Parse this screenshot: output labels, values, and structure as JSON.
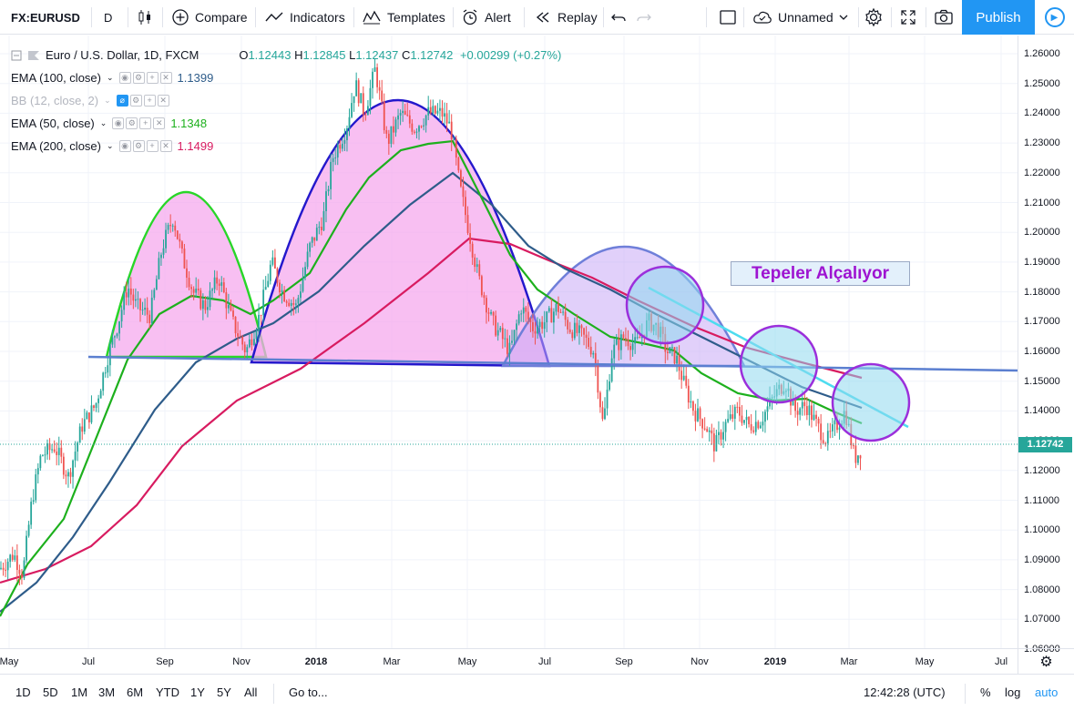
{
  "toolbar": {
    "symbol": "FX:EURUSD",
    "interval": "D",
    "compare_label": "Compare",
    "indicators_label": "Indicators",
    "templates_label": "Templates",
    "alert_label": "Alert",
    "replay_label": "Replay",
    "layout_name": "Unnamed",
    "publish_label": "Publish"
  },
  "legend": {
    "title": "Euro / U.S. Dollar, 1D, FXCM",
    "open": "1.12443",
    "high": "1.12845",
    "low": "1.12437",
    "close": "1.12742",
    "change": "+0.00299 (+0.27%)",
    "o_label": "O",
    "h_label": "H",
    "l_label": "L",
    "c_label": "C",
    "indicators": [
      {
        "label": "EMA (100, close)",
        "value": "1.1399",
        "color": "#2e5c8a"
      },
      {
        "label": "BB (12, close, 2)",
        "value": "",
        "color": "#b2b5be"
      },
      {
        "label": "EMA (50, close)",
        "value": "1.1348",
        "color": "#1db01d"
      },
      {
        "label": "EMA (200, close)",
        "value": "1.1499",
        "color": "#d81b60"
      }
    ]
  },
  "annotation": {
    "text": "Tepeler Alçalıyor",
    "color": "#9e14d1"
  },
  "price_axis": {
    "ticks": [
      "1.26000",
      "1.25000",
      "1.24000",
      "1.23000",
      "1.22000",
      "1.21000",
      "1.20000",
      "1.19000",
      "1.18000",
      "1.17000",
      "1.16000",
      "1.15000",
      "1.14000",
      "1.13000",
      "1.12000",
      "1.11000",
      "1.10000",
      "1.09000",
      "1.08000",
      "1.07000",
      "1.06000"
    ],
    "last_price": "1.12742"
  },
  "time_axis": {
    "ticks": [
      {
        "label": "May",
        "year": false
      },
      {
        "label": "Jul",
        "year": false
      },
      {
        "label": "Sep",
        "year": false
      },
      {
        "label": "Nov",
        "year": false
      },
      {
        "label": "2018",
        "year": true
      },
      {
        "label": "Mar",
        "year": false
      },
      {
        "label": "May",
        "year": false
      },
      {
        "label": "Jul",
        "year": false
      },
      {
        "label": "Sep",
        "year": false
      },
      {
        "label": "Nov",
        "year": false
      },
      {
        "label": "2019",
        "year": true
      },
      {
        "label": "Mar",
        "year": false
      },
      {
        "label": "May",
        "year": false
      },
      {
        "label": "Jul",
        "year": false
      }
    ]
  },
  "bottombar": {
    "ranges": [
      "1D",
      "5D",
      "1M",
      "3M",
      "6M",
      "YTD",
      "1Y",
      "5Y",
      "All"
    ],
    "goto_label": "Go to...",
    "time": "12:42:28 (UTC)",
    "percent_label": "%",
    "log_label": "log",
    "auto_label": "auto"
  },
  "colors": {
    "up": "#26a69a",
    "down": "#ef5350",
    "accent": "#2196f3",
    "ema50": "#1db01d",
    "ema100": "#2e5c8a",
    "ema200": "#d81b60"
  }
}
